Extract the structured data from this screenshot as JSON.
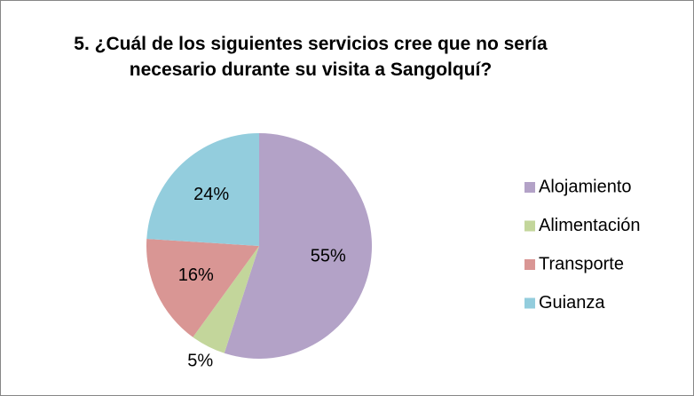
{
  "chart_data": {
    "type": "pie",
    "title": "5. ¿Cuál de los siguientes servicios cree que no sería necesario durante su visita a Sangolquí?",
    "categories": [
      "Alojamiento",
      "Alimentación",
      "Transporte",
      "Guianza"
    ],
    "values": [
      55,
      5,
      16,
      24
    ],
    "value_labels": [
      "55%",
      "5%",
      "16%",
      "24%"
    ],
    "colors": [
      "#b3a2c7",
      "#c3d69b",
      "#d99694",
      "#93cddd"
    ],
    "legend": "right"
  }
}
